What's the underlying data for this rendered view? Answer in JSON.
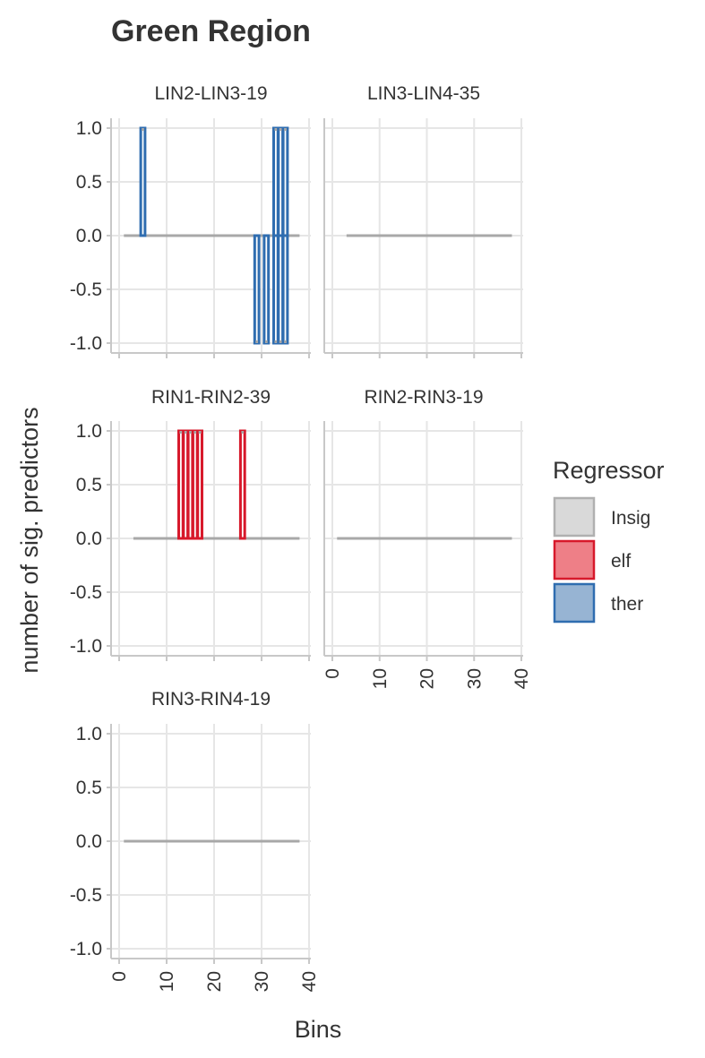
{
  "chart_data": {
    "type": "bar",
    "title": "Green Region",
    "xlabel": "Bins",
    "ylabel": "number of sig. predictors",
    "xlim": [
      0,
      40
    ],
    "ylim": [
      -1,
      1
    ],
    "x_ticks": [
      0,
      10,
      20,
      30,
      40
    ],
    "y_ticks": [
      1.0,
      0.5,
      0.0,
      -0.5,
      -1.0
    ],
    "y_tick_labels": [
      "1.0",
      "0.5",
      "0.0",
      "-0.5",
      "-1.0"
    ],
    "legend": {
      "title": "Regressor",
      "position": "right",
      "entries": [
        {
          "label": "Insig",
          "fill": "#d9d9d9",
          "stroke": "#b0b0b0"
        },
        {
          "label": "elf",
          "fill": "#ee7f87",
          "stroke": "#d7192b"
        },
        {
          "label": "ther",
          "fill": "#97b4d3",
          "stroke": "#2f6db0"
        }
      ]
    },
    "colors": {
      "Insig": "#a8a8a8",
      "elf": "#d7192b",
      "ther": "#2f6db0",
      "grid": "#e6e6e6",
      "axis": "#c8c8c8"
    },
    "grid": true,
    "panels": [
      {
        "label": "LIN2-LIN3-19",
        "x_range": [
          1,
          38
        ],
        "bars": [
          {
            "x": 5,
            "value": 1,
            "regressor": "ther"
          },
          {
            "x": 29,
            "value": -1,
            "regressor": "ther"
          },
          {
            "x": 31,
            "value": -1,
            "regressor": "ther"
          },
          {
            "x": 33,
            "value": 1,
            "regressor": "ther"
          },
          {
            "x": 33,
            "value": -1,
            "regressor": "ther"
          },
          {
            "x": 34,
            "value": 1,
            "regressor": "ther"
          },
          {
            "x": 34,
            "value": -1,
            "regressor": "ther"
          },
          {
            "x": 35,
            "value": 1,
            "regressor": "ther"
          },
          {
            "x": 35,
            "value": -1,
            "regressor": "ther"
          }
        ]
      },
      {
        "label": "LIN3-LIN4-35",
        "x_range": [
          3,
          38
        ],
        "bars": []
      },
      {
        "label": "RIN1-RIN2-39",
        "x_range": [
          3,
          38
        ],
        "bars": [
          {
            "x": 13,
            "value": 1,
            "regressor": "elf"
          },
          {
            "x": 14,
            "value": 1,
            "regressor": "elf"
          },
          {
            "x": 15,
            "value": 1,
            "regressor": "elf"
          },
          {
            "x": 16,
            "value": 1,
            "regressor": "elf"
          },
          {
            "x": 17,
            "value": 1,
            "regressor": "elf"
          },
          {
            "x": 26,
            "value": 1,
            "regressor": "elf"
          }
        ]
      },
      {
        "label": "RIN2-RIN3-19",
        "x_range": [
          1,
          38
        ],
        "bars": []
      },
      {
        "label": "RIN3-RIN4-19",
        "x_range": [
          1,
          38
        ],
        "bars": []
      }
    ]
  }
}
